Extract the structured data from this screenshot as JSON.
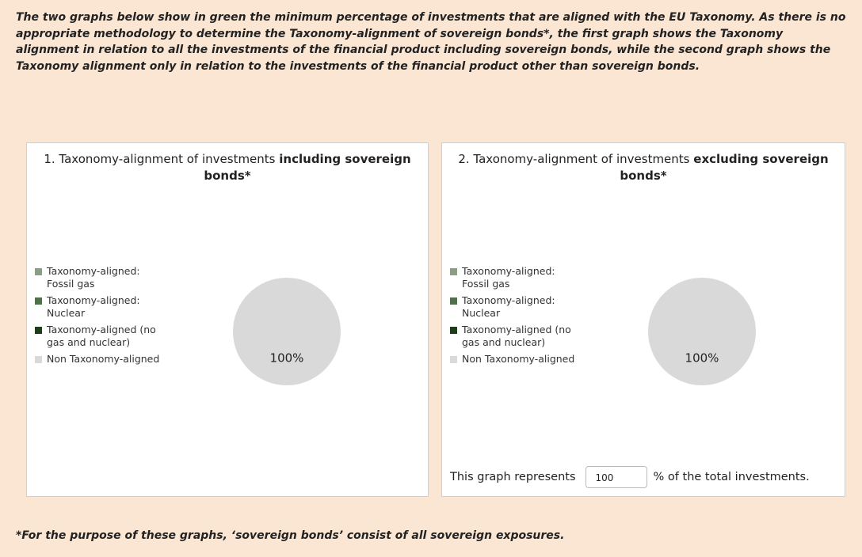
{
  "intro": "The two graphs below show in green the minimum percentage of investments that are aligned with the EU Taxonomy. As there is no appropriate methodology to determine the Taxonomy-alignment of sovereign bonds*, the first graph shows the Taxonomy alignment in relation to all the investments of the financial product including sovereign bonds, while the second graph shows the Taxonomy alignment only in relation to the investments of the financial product other than sovereign bonds.",
  "chart_data": [
    {
      "type": "pie",
      "title": "1. Taxonomy-alignment of investments",
      "title_emphasis": "including sovereign bonds*",
      "categories": [
        "Taxonomy-aligned: Fossil gas",
        "Taxonomy-aligned: Nuclear",
        "Taxonomy-aligned (no gas and nuclear)",
        "Non Taxonomy-aligned"
      ],
      "values": [
        0,
        0,
        0,
        100
      ],
      "value_labels": [
        null,
        null,
        null,
        "100%"
      ],
      "colors": [
        "#8a9e85",
        "#4f704a",
        "#1e3d19",
        "#d9d9d9"
      ],
      "legend": "left"
    },
    {
      "type": "pie",
      "title": "2. Taxonomy-alignment of investments",
      "title_emphasis": "excluding sovereign bonds*",
      "categories": [
        "Taxonomy-aligned: Fossil gas",
        "Taxonomy-aligned: Nuclear",
        "Taxonomy-aligned (no gas and nuclear)",
        "Non Taxonomy-aligned"
      ],
      "values": [
        0,
        0,
        0,
        100
      ],
      "value_labels": [
        null,
        null,
        null,
        "100%"
      ],
      "colors": [
        "#8a9e85",
        "#4f704a",
        "#1e3d19",
        "#d9d9d9"
      ],
      "legend": "left"
    }
  ],
  "total_note": {
    "prefix": "This graph represents",
    "value": 100,
    "suffix": "% of the total investments."
  },
  "footnote": "*For the purpose of these graphs, ‘sovereign bonds’ consist of all sovereign exposures."
}
